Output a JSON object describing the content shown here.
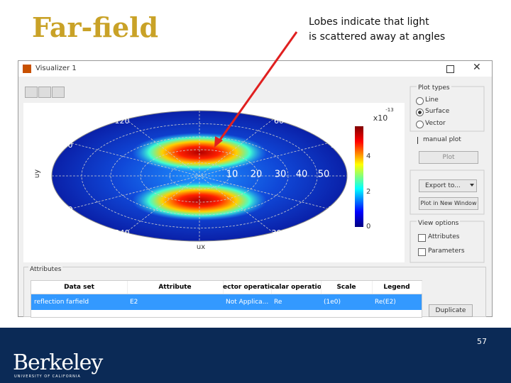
{
  "slide": {
    "title": "Far-field",
    "note": [
      "Lobes indicate that light",
      "is scattered away at angles"
    ],
    "page_number": "57"
  },
  "window": {
    "title": "Visualizer 1"
  },
  "plot": {
    "angle_labels": [
      "120",
      "60",
      "150",
      "30",
      "210",
      "330",
      "240",
      "300"
    ],
    "radial_labels": [
      "10",
      "20",
      "30",
      "40",
      "50"
    ],
    "x_label": "ux",
    "y_label": "uy",
    "colorbar": {
      "multiplier": "x10",
      "exponent": "-13",
      "ticks": [
        "4",
        "2",
        "0"
      ]
    }
  },
  "sidebar": {
    "plot_types": {
      "title": "Plot types",
      "options": [
        "Line",
        "Surface",
        "Vector"
      ]
    },
    "manual_plot": "manual plot",
    "plot_button": "Plot",
    "export_button": "Export to...",
    "new_window_button": "Plot in New Window",
    "view_options": {
      "title": "View options",
      "checks": [
        "Attributes",
        "Parameters"
      ]
    }
  },
  "attributes": {
    "title": "Attributes",
    "headers": [
      "Data set",
      "Attribute",
      "ector operatic",
      "calar operatio",
      "Scale",
      "Legend"
    ],
    "rows": [
      [
        "reflection farfield",
        "E2",
        "Not Applica...",
        "Re",
        "(1e0)",
        "Re(E2)"
      ]
    ],
    "duplicate_button": "Duplicate"
  },
  "footer": {
    "logo": "Berkeley",
    "logo_sub": "UNIVERSITY OF CALIFORNIA"
  }
}
